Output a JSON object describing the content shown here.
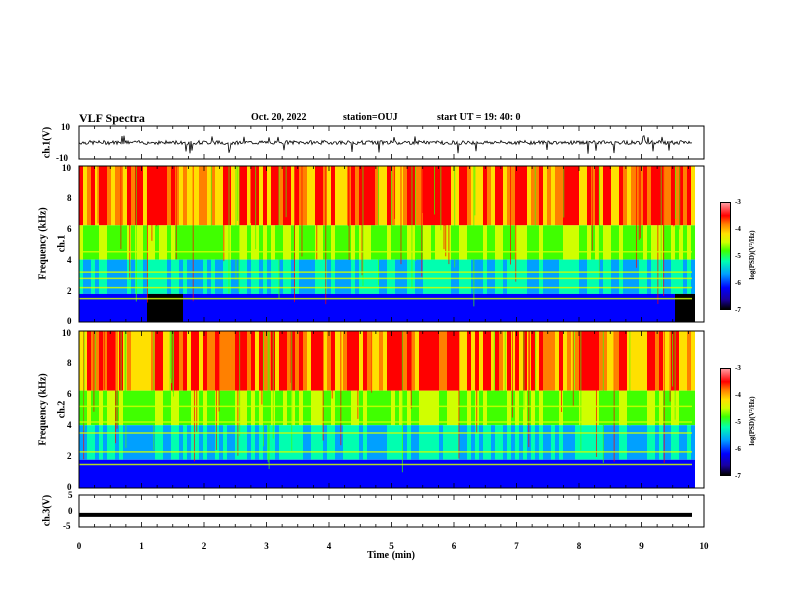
{
  "header": {
    "title": "VLF Spectra",
    "date": "Oct. 20, 2022",
    "station": "station=OUJ",
    "start_ut": "start  UT =  19: 40: 0"
  },
  "chart_data": [
    {
      "type": "line",
      "panel": "ch.1 waveform",
      "ylabel": "ch.1(V)",
      "ylim": [
        -10,
        10
      ],
      "y_ticks": [
        "10",
        "-10"
      ],
      "xlim": [
        0,
        10
      ],
      "description_values": {
        "baseline_v": 0,
        "typical_noise_v": 1.2,
        "max_spike_v": 4.5,
        "min_spike_v": -7
      }
    },
    {
      "type": "heatmap",
      "panel": "ch.1 spectrogram",
      "ylabel_line1": "ch.1",
      "ylabel_line2": "Frequency (kHz)",
      "ylim": [
        0,
        10
      ],
      "y_ticks": [
        "0",
        "2",
        "4",
        "6",
        "8",
        "10"
      ],
      "xlim": [
        0,
        10
      ],
      "colorbar": {
        "label": "log(PSD)(V²/Hz)",
        "range": [
          -7,
          -3
        ],
        "ticks": [
          "-3",
          "-4",
          "-5",
          "-6",
          "-7"
        ]
      },
      "low_band_dark_intervals_min": [
        [
          1.05,
          1.6
        ],
        [
          9.5,
          9.8
        ]
      ],
      "lines_khz": [
        1.5,
        2.2,
        2.8,
        3.2,
        4.5
      ]
    },
    {
      "type": "heatmap",
      "panel": "ch.2 spectrogram",
      "ylabel_line1": "ch.2",
      "ylabel_line2": "Frequency (kHz)",
      "ylim": [
        0,
        10
      ],
      "y_ticks": [
        "0",
        "2",
        "4",
        "6",
        "8",
        "10"
      ],
      "xlim": [
        0,
        10
      ],
      "colorbar": {
        "label": "log(PSD)(V²/Hz)",
        "range": [
          -7,
          -3
        ],
        "ticks": [
          "-3",
          "-4",
          "-5",
          "-6",
          "-7"
        ]
      },
      "lines_khz": [
        1.5,
        2.3,
        3.5,
        4.2,
        5.2
      ]
    },
    {
      "type": "line",
      "panel": "ch.3 waveform",
      "ylabel": "ch.3(V)",
      "ylim": [
        -5,
        5
      ],
      "y_ticks": [
        "5",
        "0",
        "-5"
      ],
      "xlim": [
        0,
        10
      ],
      "description_values": {
        "level_v": -1.2
      }
    }
  ],
  "x_axis": {
    "label": "Time (min)",
    "ticks": [
      "0",
      "1",
      "2",
      "3",
      "4",
      "5",
      "6",
      "7",
      "8",
      "9",
      "10"
    ]
  },
  "colors": {
    "heat": [
      "#000000",
      "#0000ff",
      "#00a0ff",
      "#00ffb0",
      "#40ff00",
      "#d0ff00",
      "#ffe000",
      "#ff8000",
      "#ff0000"
    ]
  }
}
